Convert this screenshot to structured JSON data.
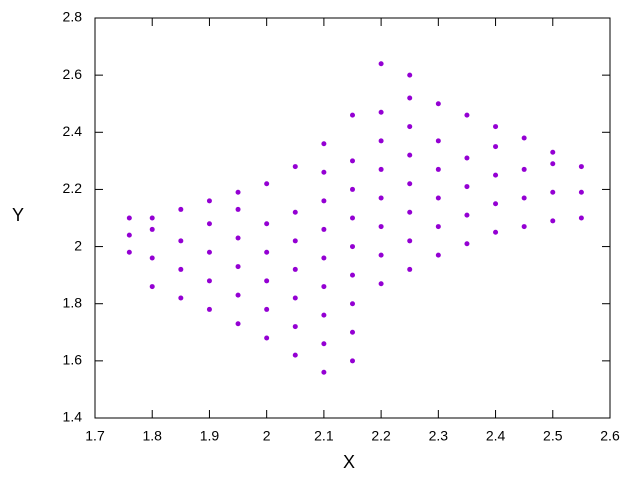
{
  "chart_data": {
    "type": "scatter",
    "xlabel": "X",
    "ylabel": "Y",
    "color": "#9400d3",
    "xlim": [
      1.7,
      2.6
    ],
    "ylim": [
      1.4,
      2.8
    ],
    "xticks": [
      1.7,
      1.8,
      1.9,
      2,
      2.1,
      2.2,
      2.3,
      2.4,
      2.5,
      2.6
    ],
    "yticks": [
      1.4,
      1.6,
      1.8,
      2,
      2.2,
      2.4,
      2.6,
      2.8
    ],
    "x": [
      1.76,
      1.76,
      1.76,
      1.8,
      1.8,
      1.8,
      1.8,
      1.85,
      1.85,
      1.85,
      1.85,
      1.9,
      1.9,
      1.9,
      1.9,
      1.9,
      1.95,
      1.95,
      1.95,
      1.95,
      1.95,
      1.95,
      2,
      2,
      2,
      2,
      2,
      2,
      2.05,
      2.05,
      2.05,
      2.05,
      2.05,
      2.05,
      2.05,
      2.1,
      2.1,
      2.1,
      2.1,
      2.1,
      2.1,
      2.1,
      2.1,
      2.1,
      2.15,
      2.15,
      2.15,
      2.15,
      2.15,
      2.15,
      2.15,
      2.15,
      2.15,
      2.2,
      2.2,
      2.2,
      2.2,
      2.2,
      2.2,
      2.2,
      2.2,
      2.25,
      2.25,
      2.25,
      2.25,
      2.25,
      2.25,
      2.25,
      2.25,
      2.3,
      2.3,
      2.3,
      2.3,
      2.3,
      2.3,
      2.35,
      2.35,
      2.35,
      2.35,
      2.35,
      2.4,
      2.4,
      2.4,
      2.4,
      2.4,
      2.45,
      2.45,
      2.45,
      2.45,
      2.5,
      2.5,
      2.5,
      2.5,
      2.55,
      2.55,
      2.55
    ],
    "y": [
      1.98,
      2.04,
      2.1,
      1.86,
      1.96,
      2.06,
      2.1,
      1.82,
      1.92,
      2.02,
      2.13,
      1.78,
      1.88,
      1.98,
      2.08,
      2.16,
      1.73,
      1.83,
      1.93,
      2.03,
      2.13,
      2.19,
      1.68,
      1.78,
      1.88,
      1.98,
      2.08,
      2.22,
      1.62,
      1.72,
      1.82,
      1.92,
      2.02,
      2.12,
      2.28,
      1.56,
      1.66,
      1.76,
      1.86,
      1.96,
      2.06,
      2.16,
      2.26,
      2.36,
      1.6,
      1.7,
      1.8,
      1.9,
      2.0,
      2.1,
      2.2,
      2.3,
      2.46,
      1.87,
      1.97,
      2.07,
      2.17,
      2.27,
      2.37,
      2.47,
      2.64,
      1.92,
      2.02,
      2.12,
      2.22,
      2.32,
      2.42,
      2.52,
      2.6,
      1.97,
      2.07,
      2.17,
      2.27,
      2.37,
      2.5,
      2.01,
      2.11,
      2.21,
      2.31,
      2.46,
      2.05,
      2.15,
      2.25,
      2.35,
      2.42,
      2.07,
      2.17,
      2.27,
      2.38,
      2.09,
      2.19,
      2.29,
      2.33,
      2.1,
      2.19,
      2.28
    ]
  }
}
